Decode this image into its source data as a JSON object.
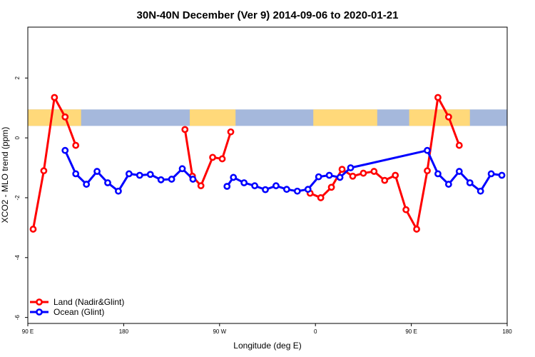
{
  "chart_data": {
    "type": "line",
    "title": "30N-40N December (Ver 9)   2014-09-06 to 2020-01-21",
    "xlabel": "Longitude (deg E)",
    "ylabel": "XCO2 - MLO trend (ppm)",
    "xlim": [
      90,
      540
    ],
    "ylim": [
      -6.2,
      3.7
    ],
    "x_ticks": [
      {
        "value": 90,
        "label": "90 E"
      },
      {
        "value": 180,
        "label": "180"
      },
      {
        "value": 270,
        "label": "90 W"
      },
      {
        "value": 360,
        "label": "0"
      },
      {
        "value": 450,
        "label": "90 E"
      },
      {
        "value": 540,
        "label": "180"
      }
    ],
    "y_ticks": [
      {
        "value": 2,
        "label": "2"
      },
      {
        "value": 0,
        "label": "0"
      },
      {
        "value": -2,
        "label": "-2"
      },
      {
        "value": -4,
        "label": "-4"
      },
      {
        "value": -6,
        "label": "-6"
      }
    ],
    "legend": {
      "position": "bottom-left"
    },
    "series": [
      {
        "name": "Land (Nadir&Glint)",
        "color": "#ff0000",
        "segments": [
          {
            "x": [
              95,
              105,
              115,
              125,
              135
            ],
            "y": [
              -3.05,
              -1.1,
              1.35,
              0.7,
              -0.25
            ]
          },
          {
            "x": [
              237.5,
              244.5,
              252.5,
              263.5,
              272.5,
              280.5
            ],
            "y": [
              0.28,
              -1.28,
              -1.6,
              -0.65,
              -0.7,
              0.2
            ]
          },
          {
            "x": [
              355,
              365,
              375,
              385,
              395,
              405,
              415,
              425,
              435,
              445,
              455,
              465,
              475,
              485,
              495
            ],
            "y": [
              -1.85,
              -2.0,
              -1.65,
              -1.05,
              -1.28,
              -1.18,
              -1.12,
              -1.42,
              -1.25,
              -2.4,
              -3.05,
              -1.1,
              1.35,
              0.7,
              -0.25
            ]
          }
        ]
      },
      {
        "name": "Ocean (Glint)",
        "color": "#0000ff",
        "segments": [
          {
            "x": [
              125,
              135,
              145,
              155,
              165,
              175,
              185,
              195,
              205,
              215,
              225,
              235,
              245
            ],
            "y": [
              -0.42,
              -1.2,
              -1.55,
              -1.12,
              -1.5,
              -1.78,
              -1.2,
              -1.25,
              -1.22,
              -1.4,
              -1.38,
              -1.03,
              -1.38
            ]
          },
          {
            "x": [
              277,
              283,
              293,
              303,
              313,
              323,
              333,
              343,
              353,
              363,
              373,
              383,
              393,
              465,
              475,
              485,
              495,
              505,
              515,
              525,
              535
            ],
            "y": [
              -1.62,
              -1.32,
              -1.5,
              -1.6,
              -1.73,
              -1.6,
              -1.72,
              -1.78,
              -1.72,
              -1.3,
              -1.25,
              -1.32,
              -1.0,
              -0.42,
              -1.2,
              -1.55,
              -1.12,
              -1.5,
              -1.78,
              -1.2,
              -1.25
            ]
          }
        ]
      }
    ],
    "map_strip": {
      "y_range": [
        0.4,
        0.95
      ],
      "colors": {
        "ocean": "#a5b8dc",
        "land": "#ffd97a"
      },
      "land_spans": [
        [
          90,
          140
        ],
        [
          242,
          285
        ],
        [
          358,
          418
        ],
        [
          448,
          505
        ]
      ]
    }
  }
}
